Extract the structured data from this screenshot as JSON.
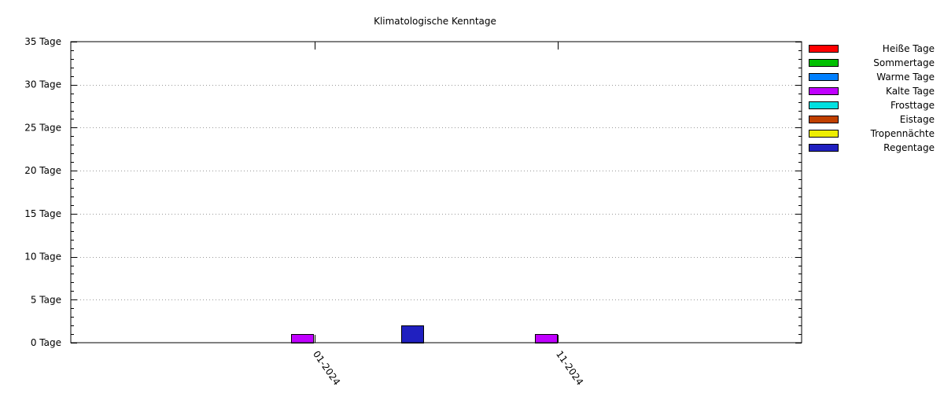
{
  "chart_data": {
    "type": "bar",
    "title": "Klimatologische Kenntage",
    "xlabel": "",
    "ylabel": "",
    "ylim": [
      0,
      35
    ],
    "y_tick_values": [
      0,
      5,
      10,
      15,
      20,
      25,
      30,
      35
    ],
    "y_tick_labels": [
      "0 Tage",
      "5 Tage",
      "10 Tage",
      "15 Tage",
      "20 Tage",
      "25 Tage",
      "30 Tage",
      "35 Tage"
    ],
    "y_minor_step": 1,
    "grid": true,
    "legend_position": "right",
    "categories": [
      "01-2024",
      "11-2024"
    ],
    "category_positions": [
      1,
      2
    ],
    "xlim": [
      0,
      3
    ],
    "bar_width": 0.09,
    "series": [
      {
        "name": "Heiße Tage",
        "color": "#ff0000",
        "points": []
      },
      {
        "name": "Sommertage",
        "color": "#00c000",
        "points": []
      },
      {
        "name": "Warme Tage",
        "color": "#0080ff",
        "points": []
      },
      {
        "name": "Kalte Tage",
        "color": "#c000ff",
        "points": [
          {
            "x": 0.95,
            "y": 1
          },
          {
            "x": 1.95,
            "y": 1
          }
        ]
      },
      {
        "name": "Frosttage",
        "color": "#00e0e0",
        "points": []
      },
      {
        "name": "Eistage",
        "color": "#c04000",
        "points": []
      },
      {
        "name": "Tropennächte",
        "color": "#eeee00",
        "points": []
      },
      {
        "name": "Regentage",
        "color": "#2020c0",
        "points": [
          {
            "x": 1.4,
            "y": 2
          }
        ]
      }
    ]
  }
}
